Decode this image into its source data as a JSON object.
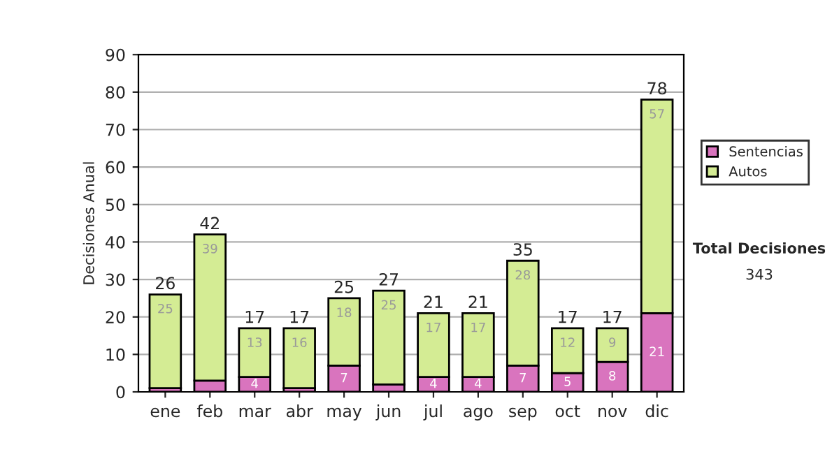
{
  "chart_data": {
    "type": "bar",
    "stacked": true,
    "ylabel": "Decisiones Anual",
    "categories": [
      "ene",
      "feb",
      "mar",
      "abr",
      "may",
      "jun",
      "jul",
      "ago",
      "sep",
      "oct",
      "nov",
      "dic"
    ],
    "series": [
      {
        "name": "Sentencias",
        "color": "#d974be",
        "values": [
          1,
          3,
          4,
          1,
          7,
          2,
          4,
          4,
          7,
          5,
          8,
          21
        ],
        "value_labels": [
          null,
          null,
          "4",
          null,
          "7",
          null,
          "4",
          "4",
          "7",
          "5",
          "8",
          "21"
        ]
      },
      {
        "name": "Autos",
        "color": "#d4ec94",
        "values": [
          25,
          39,
          13,
          16,
          18,
          25,
          17,
          17,
          28,
          12,
          9,
          57
        ],
        "value_labels": [
          "25",
          "39",
          "13",
          "16",
          "18",
          "25",
          "17",
          "17",
          "28",
          "12",
          "9",
          "57"
        ]
      }
    ],
    "totals": [
      "26",
      "42",
      "17",
      "17",
      "25",
      "27",
      "21",
      "21",
      "35",
      "17",
      "17",
      "78"
    ],
    "ylim": [
      0,
      90
    ],
    "yticks": [
      0,
      10,
      20,
      30,
      40,
      50,
      60,
      70,
      80,
      90
    ],
    "grid": "y",
    "legend": "right",
    "annotations": [
      "Total Decisiones",
      "343"
    ]
  }
}
